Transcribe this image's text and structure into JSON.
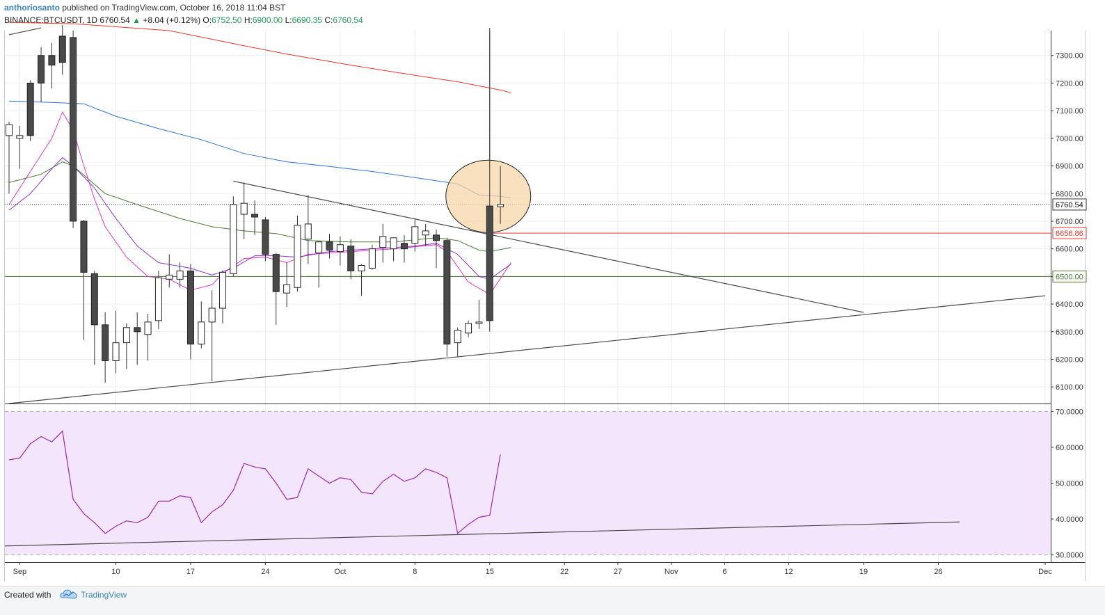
{
  "header": {
    "author": "anthoriosanto",
    "published_text": "published on TradingView.com, October 16, 2018 11:04 BST",
    "symbol": "BINANCE:BTCUSDT, 1D",
    "last": "6760.54",
    "change_arrow": "▲",
    "change": "+8.04 (+0.12%)",
    "open_label": "O:",
    "open": "6752.50",
    "high_label": "H:",
    "high": "6900.00",
    "low_label": "L:",
    "low": "6690.35",
    "close_label": "C:",
    "close": "6760.54"
  },
  "footer": {
    "created_label": "Created with",
    "brand": "TradingView",
    "logo_icon": "tradingview-cloud-icon"
  },
  "colors": {
    "up": "#ffffff",
    "down": "#4a4a4a",
    "wick": "#333333",
    "ma_red": "#e8362c",
    "ma_blue": "#2f6fd8",
    "ma_green": "#4a7a33",
    "ema_magenta": "#e535c7",
    "ema_purple": "#8a30d8",
    "rsi_line": "#9c27b0",
    "rsi_band": "#f3e5fc",
    "last_price_bg": "#ffffff",
    "red_level": "#e8362c",
    "green_level": "#4a7a33",
    "highlight": "#f7d6a8"
  },
  "chart_data": [
    {
      "type": "candlestick",
      "symbol": "BINANCE:BTCUSDT",
      "interval": "1D",
      "ylim": [
        6040,
        7390
      ],
      "yticks": [
        6100,
        6200,
        6300,
        6400,
        6500,
        6600,
        6700,
        6800,
        6900,
        7000,
        7100,
        7200,
        7300
      ],
      "ytick_labels": [
        "6100.00",
        "6200.00",
        "6300.00",
        "6400.00",
        "6500.00",
        "6600.00",
        "6700.00",
        "6800.00",
        "6900.00",
        "7000.00",
        "7100.00",
        "7200.00",
        "7300.00"
      ],
      "xtick_labels": [
        "Sep",
        "10",
        "17",
        "24",
        "Oct",
        "8",
        "15",
        "22",
        "27",
        "Nov",
        "6",
        "12",
        "19",
        "26",
        "Dec"
      ],
      "grid": true,
      "candles": [
        {
          "date": "2018-08-31",
          "o": 7010,
          "h": 7060,
          "l": 6800,
          "c": 7050
        },
        {
          "date": "2018-09-01",
          "o": 7000,
          "h": 7045,
          "l": 6890,
          "c": 7010
        },
        {
          "date": "2018-09-02",
          "o": 7200,
          "h": 7210,
          "l": 6990,
          "c": 7010
        },
        {
          "date": "2018-09-03",
          "o": 7300,
          "h": 7330,
          "l": 7130,
          "c": 7200
        },
        {
          "date": "2018-09-04",
          "o": 7300,
          "h": 7345,
          "l": 7180,
          "c": 7265
        },
        {
          "date": "2018-09-05",
          "o": 7370,
          "h": 7410,
          "l": 7230,
          "c": 7275
        },
        {
          "date": "2018-09-06",
          "o": 7365,
          "h": 7390,
          "l": 6675,
          "c": 6700
        },
        {
          "date": "2018-09-07",
          "o": 6700,
          "h": 6705,
          "l": 6270,
          "c": 6515
        },
        {
          "date": "2018-09-08",
          "o": 6510,
          "h": 6520,
          "l": 6180,
          "c": 6325
        },
        {
          "date": "2018-09-09",
          "o": 6325,
          "h": 6370,
          "l": 6115,
          "c": 6195
        },
        {
          "date": "2018-09-10",
          "o": 6195,
          "h": 6375,
          "l": 6150,
          "c": 6260
        },
        {
          "date": "2018-09-11",
          "o": 6260,
          "h": 6330,
          "l": 6165,
          "c": 6315
        },
        {
          "date": "2018-09-12",
          "o": 6315,
          "h": 6370,
          "l": 6180,
          "c": 6300
        },
        {
          "date": "2018-09-13",
          "o": 6290,
          "h": 6365,
          "l": 6195,
          "c": 6335
        },
        {
          "date": "2018-09-14",
          "o": 6340,
          "h": 6520,
          "l": 6310,
          "c": 6495
        },
        {
          "date": "2018-09-15",
          "o": 6490,
          "h": 6580,
          "l": 6460,
          "c": 6505
        },
        {
          "date": "2018-09-16",
          "o": 6490,
          "h": 6550,
          "l": 6460,
          "c": 6520
        },
        {
          "date": "2018-09-17",
          "o": 6520,
          "h": 6545,
          "l": 6200,
          "c": 6255
        },
        {
          "date": "2018-09-18",
          "o": 6255,
          "h": 6410,
          "l": 6240,
          "c": 6335
        },
        {
          "date": "2018-09-19",
          "o": 6335,
          "h": 6450,
          "l": 6120,
          "c": 6385
        },
        {
          "date": "2018-09-20",
          "o": 6385,
          "h": 6520,
          "l": 6330,
          "c": 6515
        },
        {
          "date": "2018-09-21",
          "o": 6510,
          "h": 6790,
          "l": 6500,
          "c": 6760
        },
        {
          "date": "2018-09-22",
          "o": 6725,
          "h": 6840,
          "l": 6635,
          "c": 6765
        },
        {
          "date": "2018-09-23",
          "o": 6725,
          "h": 6775,
          "l": 6650,
          "c": 6715
        },
        {
          "date": "2018-09-24",
          "o": 6705,
          "h": 6715,
          "l": 6555,
          "c": 6580
        },
        {
          "date": "2018-09-25",
          "o": 6580,
          "h": 6585,
          "l": 6325,
          "c": 6445
        },
        {
          "date": "2018-09-26",
          "o": 6440,
          "h": 6550,
          "l": 6390,
          "c": 6470
        },
        {
          "date": "2018-09-27",
          "o": 6460,
          "h": 6720,
          "l": 6445,
          "c": 6685
        },
        {
          "date": "2018-09-28",
          "o": 6635,
          "h": 6795,
          "l": 6545,
          "c": 6690
        },
        {
          "date": "2018-09-29",
          "o": 6585,
          "h": 6630,
          "l": 6460,
          "c": 6625
        },
        {
          "date": "2018-09-30",
          "o": 6625,
          "h": 6655,
          "l": 6565,
          "c": 6595
        },
        {
          "date": "2018-10-01",
          "o": 6590,
          "h": 6645,
          "l": 6540,
          "c": 6615
        },
        {
          "date": "2018-10-02",
          "o": 6610,
          "h": 6635,
          "l": 6490,
          "c": 6520
        },
        {
          "date": "2018-10-03",
          "o": 6520,
          "h": 6545,
          "l": 6430,
          "c": 6540
        },
        {
          "date": "2018-10-04",
          "o": 6530,
          "h": 6615,
          "l": 6525,
          "c": 6600
        },
        {
          "date": "2018-10-05",
          "o": 6605,
          "h": 6690,
          "l": 6550,
          "c": 6645
        },
        {
          "date": "2018-10-06",
          "o": 6600,
          "h": 6640,
          "l": 6555,
          "c": 6640
        },
        {
          "date": "2018-10-07",
          "o": 6620,
          "h": 6650,
          "l": 6550,
          "c": 6600
        },
        {
          "date": "2018-10-08",
          "o": 6620,
          "h": 6710,
          "l": 6590,
          "c": 6680
        },
        {
          "date": "2018-10-09",
          "o": 6650,
          "h": 6690,
          "l": 6610,
          "c": 6665
        },
        {
          "date": "2018-10-10",
          "o": 6650,
          "h": 6670,
          "l": 6530,
          "c": 6630
        },
        {
          "date": "2018-10-11",
          "o": 6630,
          "h": 6640,
          "l": 6210,
          "c": 6255
        },
        {
          "date": "2018-10-12",
          "o": 6260,
          "h": 6315,
          "l": 6210,
          "c": 6305
        },
        {
          "date": "2018-10-13",
          "o": 6295,
          "h": 6340,
          "l": 6280,
          "c": 6330
        },
        {
          "date": "2018-10-14",
          "o": 6330,
          "h": 6415,
          "l": 6310,
          "c": 6335
        },
        {
          "date": "2018-10-15",
          "o": 6755,
          "h": 7400,
          "l": 6300,
          "c": 6340
        },
        {
          "date": "2018-10-16",
          "o": 6752.5,
          "h": 6900,
          "l": 6690.35,
          "c": 6760.54
        }
      ],
      "moving_averages": [
        {
          "name": "MA red",
          "color_key": "ma_red",
          "values": [
            [
              0,
              7420
            ],
            [
              6,
              7415
            ],
            [
              15,
              7390
            ],
            [
              22,
              7335
            ],
            [
              26,
              7305
            ],
            [
              32,
              7265
            ],
            [
              38,
              7228
            ],
            [
              42,
              7205
            ],
            [
              46,
              7175
            ],
            [
              47,
              7165
            ]
          ]
        },
        {
          "name": "MA blue",
          "color_key": "ma_blue",
          "values": [
            [
              0,
              7135
            ],
            [
              4,
              7130
            ],
            [
              7,
              7125
            ],
            [
              10,
              7080
            ],
            [
              14,
              7035
            ],
            [
              18,
              6995
            ],
            [
              22,
              6945
            ],
            [
              26,
              6915
            ],
            [
              30,
              6898
            ],
            [
              34,
              6880
            ],
            [
              38,
              6858
            ],
            [
              42,
              6835
            ],
            [
              44,
              6795
            ],
            [
              46,
              6790
            ],
            [
              47,
              6785
            ]
          ]
        },
        {
          "name": "MA green",
          "color_key": "ma_green",
          "values": [
            [
              0,
              6840
            ],
            [
              3,
              6870
            ],
            [
              5,
              6915
            ],
            [
              6,
              6900
            ],
            [
              9,
              6800
            ],
            [
              12,
              6760
            ],
            [
              16,
              6710
            ],
            [
              19,
              6680
            ],
            [
              22,
              6665
            ],
            [
              25,
              6655
            ],
            [
              28,
              6630
            ],
            [
              32,
              6625
            ],
            [
              36,
              6625
            ],
            [
              40,
              6640
            ],
            [
              42,
              6630
            ],
            [
              44,
              6595
            ],
            [
              45,
              6590
            ],
            [
              47,
              6605
            ]
          ]
        },
        {
          "name": "EMA magenta",
          "color_key": "ema_magenta",
          "values": [
            [
              0,
              6760
            ],
            [
              2,
              6880
            ],
            [
              4,
              7000
            ],
            [
              5,
              7095
            ],
            [
              6,
              7030
            ],
            [
              7,
              6900
            ],
            [
              8,
              6780
            ],
            [
              9,
              6680
            ],
            [
              11,
              6570
            ],
            [
              13,
              6500
            ],
            [
              15,
              6490
            ],
            [
              17,
              6450
            ],
            [
              19,
              6470
            ],
            [
              20,
              6510
            ],
            [
              22,
              6565
            ],
            [
              24,
              6570
            ],
            [
              26,
              6550
            ],
            [
              28,
              6580
            ],
            [
              32,
              6590
            ],
            [
              36,
              6600
            ],
            [
              40,
              6615
            ],
            [
              41,
              6590
            ],
            [
              43,
              6480
            ],
            [
              45,
              6435
            ],
            [
              47,
              6550
            ]
          ]
        },
        {
          "name": "EMA purple",
          "color_key": "ema_purple",
          "values": [
            [
              0,
              6740
            ],
            [
              2,
              6800
            ],
            [
              4,
              6890
            ],
            [
              5,
              6930
            ],
            [
              6,
              6900
            ],
            [
              8,
              6820
            ],
            [
              10,
              6710
            ],
            [
              12,
              6610
            ],
            [
              14,
              6550
            ],
            [
              17,
              6530
            ],
            [
              19,
              6505
            ],
            [
              21,
              6530
            ],
            [
              23,
              6575
            ],
            [
              25,
              6575
            ],
            [
              27,
              6570
            ],
            [
              30,
              6590
            ],
            [
              34,
              6600
            ],
            [
              38,
              6610
            ],
            [
              40,
              6620
            ],
            [
              42,
              6580
            ],
            [
              44,
              6500
            ],
            [
              45,
              6490
            ],
            [
              47,
              6545
            ]
          ]
        }
      ],
      "trendlines": [
        {
          "from": [
            "2018-08-31",
            7375
          ],
          "to": [
            "2018-09-03",
            7400
          ]
        },
        {
          "from": [
            "2018-09-21",
            6845
          ],
          "to": [
            "2018-11-19",
            6370
          ]
        },
        {
          "from": [
            "2018-08-31",
            6040
          ],
          "to": [
            "2018-12-06",
            6430
          ]
        }
      ],
      "horizontal_levels": [
        {
          "value": 6656.86,
          "label": "6656.86",
          "color_key": "red_level"
        },
        {
          "value": 6500,
          "label": "6500.00",
          "color_key": "green_level"
        }
      ],
      "last_price": {
        "value": 6760.54,
        "label": "6760.54"
      },
      "crosshair_date": "2018-10-15",
      "highlight_ellipse": {
        "center_date": "2018-10-15",
        "center_price": 6790,
        "note": "orange circle around 15 Oct breakout candle"
      }
    },
    {
      "type": "line",
      "name": "RSI",
      "ylim": [
        28,
        72
      ],
      "yticks": [
        30,
        40,
        50,
        60,
        70
      ],
      "ytick_labels": [
        "30.0000",
        "40.0000",
        "50.0000",
        "60.0000",
        "70.0000"
      ],
      "band": [
        30,
        70
      ],
      "values": [
        56.5,
        57,
        61,
        63,
        61.5,
        64.5,
        45.5,
        41.5,
        39,
        36,
        38,
        39.5,
        39,
        40.5,
        45,
        45,
        46.5,
        46,
        39,
        42,
        44,
        48,
        55.5,
        54.5,
        54,
        50,
        45.5,
        46,
        54,
        52,
        50,
        51.5,
        51,
        47.5,
        47,
        50.5,
        52.5,
        50.5,
        51.5,
        54,
        53,
        51.5,
        36,
        38.5,
        40.5,
        41,
        58
      ],
      "trendline": {
        "from": [
          0,
          32.5
        ],
        "to": [
          "2018-11-28",
          39.2
        ]
      }
    }
  ]
}
